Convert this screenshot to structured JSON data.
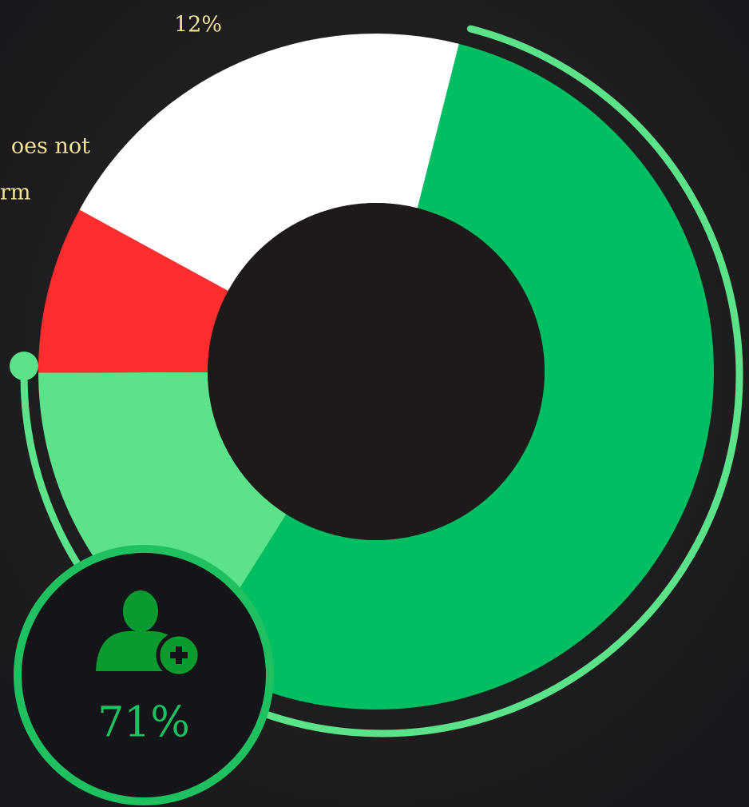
{
  "chart_data": {
    "type": "donut",
    "values": [
      55,
      16,
      8,
      21
    ],
    "colors": [
      "#00bf63",
      "#5ce38a",
      "#ff2d2d",
      "#ffffff"
    ],
    "annotations": [
      "12%",
      "oes not",
      "rm"
    ],
    "badge": {
      "value": 71,
      "value_label": "71%",
      "color": "#1fc060",
      "ring_color": "#5ce38a"
    }
  }
}
